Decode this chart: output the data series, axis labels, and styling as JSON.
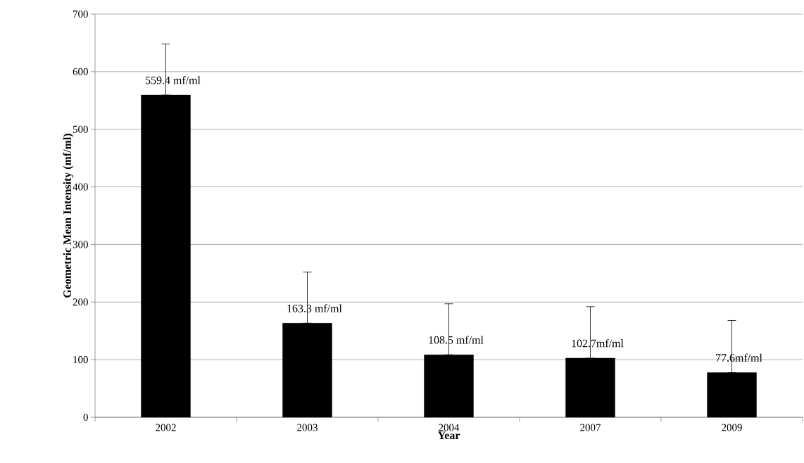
{
  "chart_data": {
    "type": "bar",
    "xlabel": "Year",
    "ylabel": "Geometric Mean Intensity (mf/ml)",
    "categories": [
      "2002",
      "2003",
      "2004",
      "2007",
      "2009"
    ],
    "values": [
      559.4,
      163.3,
      108.5,
      102.7,
      77.6
    ],
    "color": "#000000",
    "errors": [
      [
        559.4,
        648
      ],
      [
        163.3,
        252
      ],
      [
        108.5,
        197
      ],
      [
        102.7,
        192
      ],
      [
        77.6,
        168
      ]
    ],
    "value_labels": [
      "559.4 mf/ml",
      "163.3 mf/ml",
      "108.5 mf/ml",
      "102.7mf/ml",
      "77.6mf/ml"
    ],
    "ylim": [
      0,
      700
    ],
    "yticks": [
      0,
      100,
      200,
      300,
      400,
      500,
      600,
      700
    ],
    "grid": "y"
  }
}
